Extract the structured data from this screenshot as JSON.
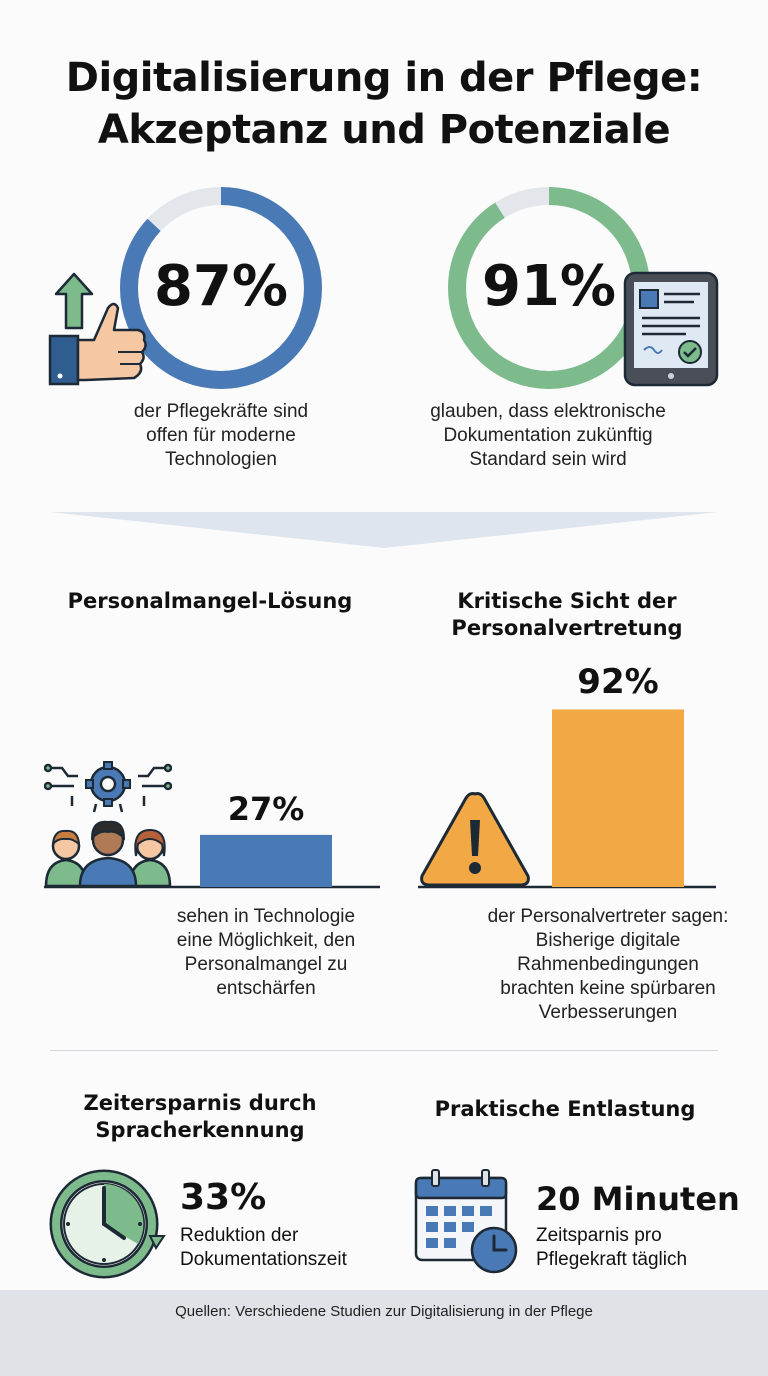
{
  "title": {
    "line1": "Digitalisierung in der Pflege:",
    "line2": "Akzeptanz und Potenziale"
  },
  "stat_left": {
    "value": "87%",
    "percent": 87,
    "desc_line1": "der Pflegekräfte sind",
    "desc_line2": "offen für moderne",
    "desc_line3": "Technologien",
    "color": "#4a7ab5"
  },
  "stat_right": {
    "value": "91%",
    "percent": 91,
    "desc_line1": "glauben, dass elektronische",
    "desc_line2": "Dokumentation zukünftig",
    "desc_line3": "Standard sein wird",
    "color": "#7dba8c"
  },
  "section_staff": {
    "heading": "Personalmangel-Lösung",
    "value": "27%",
    "percent": 27,
    "desc_line1": "sehen in Technologie",
    "desc_line2": "eine Möglichkeit, den",
    "desc_line3": "Personalmangel zu",
    "desc_line4": "entschärfen",
    "color": "#4a7ab5"
  },
  "section_critical": {
    "heading_line1": "Kritische Sicht der",
    "heading_line2": "Personalvertretung",
    "value": "92%",
    "percent": 92,
    "desc_line1": "der Personalvertreter sagen:",
    "desc_line2": "Bisherige digitale",
    "desc_line3": "Rahmenbedingungen",
    "desc_line4": "brachten keine spürbaren",
    "desc_line5": "Verbesserungen",
    "color": "#f2a945"
  },
  "section_time": {
    "heading_line1": "Zeitersparnis durch",
    "heading_line2": "Spracherkennung",
    "value": "33%",
    "desc_line1": "Reduktion der",
    "desc_line2": "Dokumentationszeit"
  },
  "section_relief": {
    "heading": "Praktische Entlastung",
    "value": "20 Minuten",
    "desc_line1": "Zeitsparnis pro",
    "desc_line2": "Pflegekraft täglich"
  },
  "footer": {
    "text": "Quellen: Verschiedene Studien zur Digitalisierung in der Pflege"
  }
}
